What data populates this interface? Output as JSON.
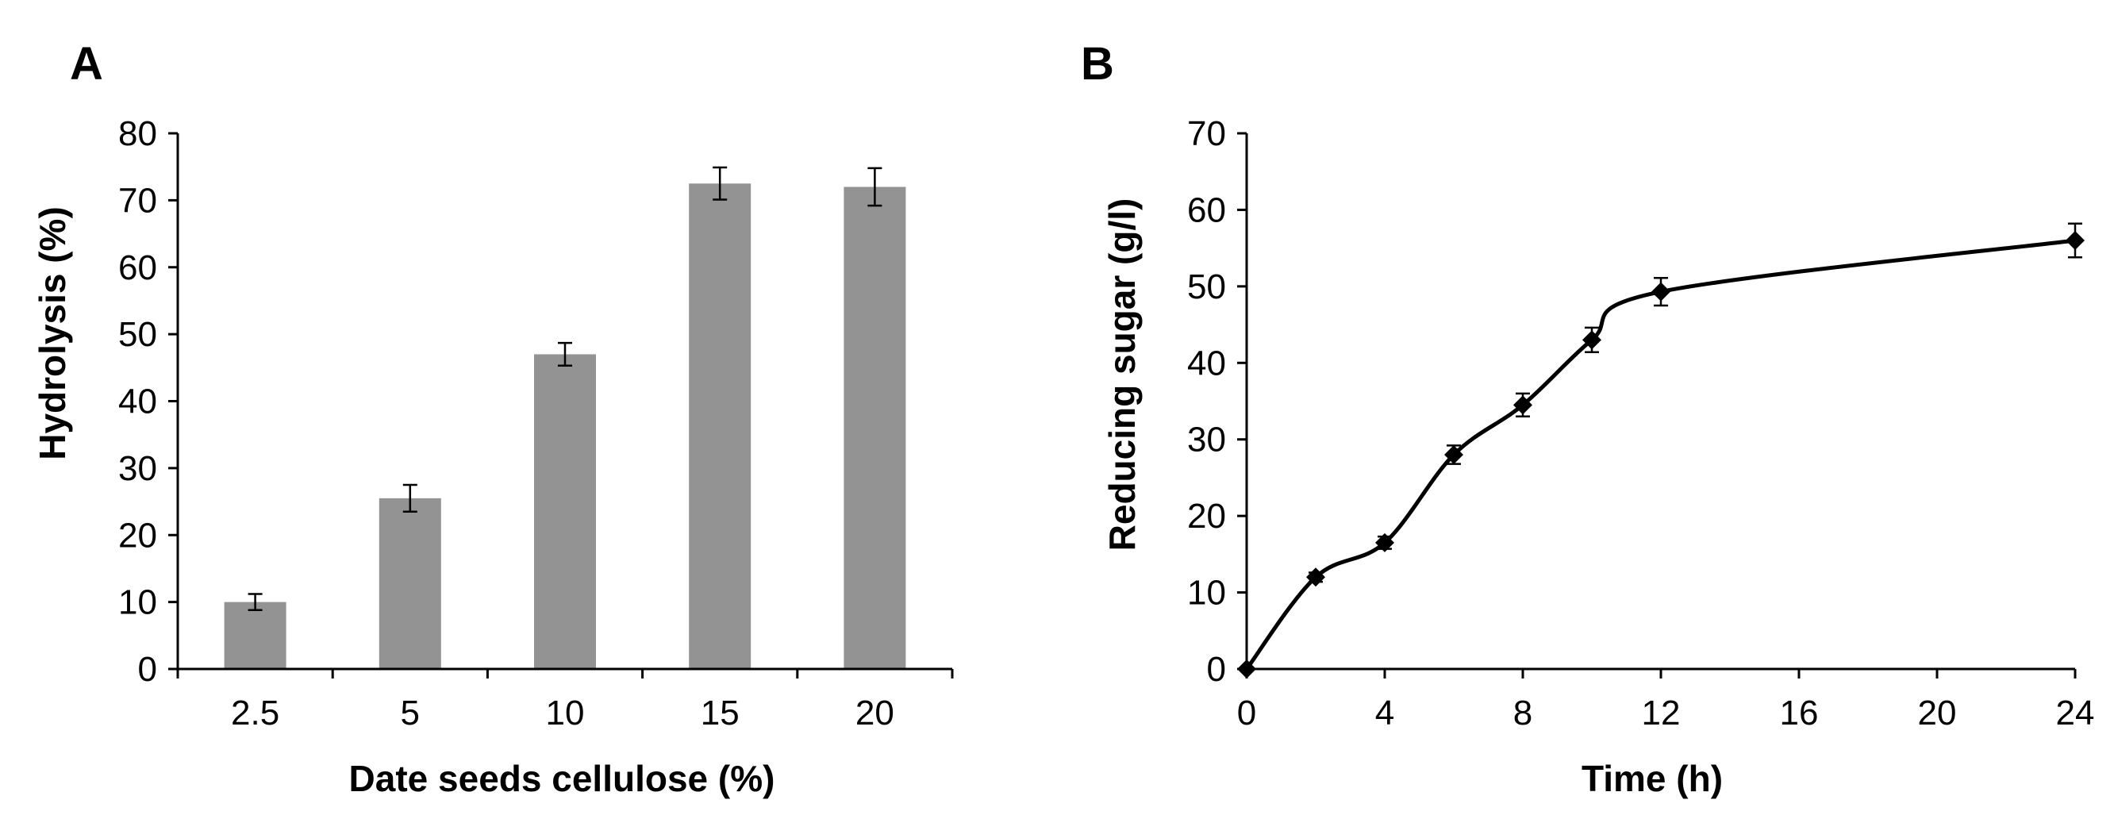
{
  "colors": {
    "bar": "#939393",
    "axis": "#000000",
    "line": "#000000",
    "background": "#ffffff"
  },
  "chart_data": [
    {
      "panel": "A",
      "type": "bar",
      "xlabel": "Date seeds cellulose (%)",
      "ylabel": "Hydrolysis (%)",
      "categories": [
        "2.5",
        "5",
        "10",
        "15",
        "20"
      ],
      "values": [
        10,
        25.5,
        47,
        72.5,
        72
      ],
      "errors": [
        1.2,
        2,
        1.7,
        2.4,
        2.8
      ],
      "ylim": [
        0,
        80
      ],
      "yticks": [
        "0",
        "10",
        "20",
        "30",
        "40",
        "50",
        "60",
        "70",
        "80"
      ],
      "grid": false
    },
    {
      "panel": "B",
      "type": "line",
      "marker": "diamond",
      "smooth": true,
      "xlabel": "Time (h)",
      "ylabel": "Reducing sugar (g/l)",
      "x": [
        0,
        2,
        4,
        6,
        8,
        10,
        12,
        24
      ],
      "y": [
        0,
        12,
        16.5,
        28,
        34.5,
        43,
        49.3,
        56
      ],
      "errors": [
        0,
        0.6,
        0.8,
        1.2,
        1.5,
        1.6,
        1.8,
        2.2
      ],
      "xlim": [
        0,
        24
      ],
      "ylim": [
        0,
        70
      ],
      "xticks": [
        "0",
        "4",
        "8",
        "12",
        "16",
        "20",
        "24"
      ],
      "yticks": [
        "0",
        "10",
        "20",
        "30",
        "40",
        "50",
        "60",
        "70"
      ],
      "grid": false
    }
  ]
}
